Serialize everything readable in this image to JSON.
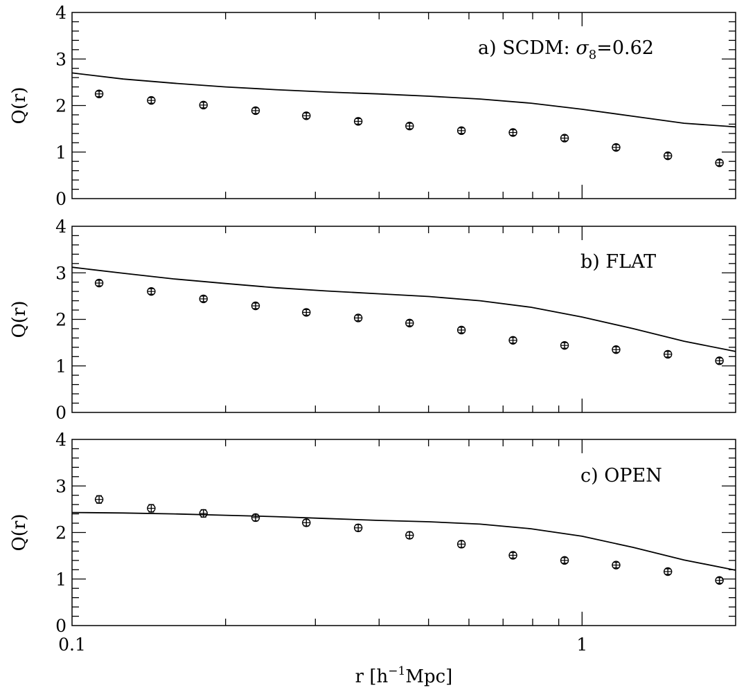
{
  "x_axis": {
    "label_main": "r ",
    "label_open": "[h",
    "label_sup": "−1",
    "label_close": "Mpc]"
  },
  "chart_data": [
    {
      "type": "scatter",
      "panel_label_prefix": "a) SCDM: ",
      "panel_label_sigma": "σ",
      "panel_label_sub": "8",
      "panel_label_suffix": "=0.62",
      "ylabel": "Q(r)",
      "xscale": "log",
      "xlim": [
        0.1,
        2.0
      ],
      "ylim": [
        0,
        4
      ],
      "yticks": [
        "0",
        "1",
        "2",
        "3",
        "4"
      ],
      "xtick_labels": [],
      "points": {
        "x": [
          0.113,
          0.143,
          0.181,
          0.229,
          0.288,
          0.364,
          0.459,
          0.58,
          0.732,
          0.924,
          1.166,
          1.473,
          1.859
        ],
        "y": [
          2.25,
          2.11,
          2.01,
          1.89,
          1.78,
          1.66,
          1.56,
          1.46,
          1.42,
          1.3,
          1.1,
          0.92,
          0.77
        ],
        "err": [
          0.06,
          0.06,
          0.06,
          0.06,
          0.06,
          0.06,
          0.06,
          0.06,
          0.06,
          0.06,
          0.06,
          0.06,
          0.06
        ]
      },
      "curve": {
        "x": [
          0.1,
          0.126,
          0.158,
          0.2,
          0.251,
          0.316,
          0.398,
          0.501,
          0.631,
          0.794,
          1.0,
          1.259,
          1.585,
          2.0
        ],
        "y": [
          2.7,
          2.57,
          2.48,
          2.4,
          2.34,
          2.29,
          2.25,
          2.2,
          2.14,
          2.05,
          1.92,
          1.77,
          1.62,
          1.54
        ]
      }
    },
    {
      "type": "scatter",
      "panel_label_prefix": "b) FLAT",
      "ylabel": "Q(r)",
      "xscale": "log",
      "xlim": [
        0.1,
        2.0
      ],
      "ylim": [
        0,
        4
      ],
      "yticks": [
        "0",
        "1",
        "2",
        "3",
        "4"
      ],
      "xtick_labels": [],
      "points": {
        "x": [
          0.113,
          0.143,
          0.181,
          0.229,
          0.288,
          0.364,
          0.459,
          0.58,
          0.732,
          0.924,
          1.166,
          1.473,
          1.859
        ],
        "y": [
          2.78,
          2.6,
          2.44,
          2.29,
          2.15,
          2.03,
          1.92,
          1.77,
          1.55,
          1.44,
          1.35,
          1.25,
          1.11
        ],
        "err": [
          0.06,
          0.06,
          0.06,
          0.06,
          0.06,
          0.06,
          0.06,
          0.06,
          0.06,
          0.06,
          0.06,
          0.06,
          0.06
        ]
      },
      "curve": {
        "x": [
          0.1,
          0.126,
          0.158,
          0.2,
          0.251,
          0.316,
          0.398,
          0.501,
          0.631,
          0.794,
          1.0,
          1.259,
          1.585,
          2.0
        ],
        "y": [
          3.12,
          2.99,
          2.87,
          2.77,
          2.68,
          2.61,
          2.55,
          2.49,
          2.4,
          2.26,
          2.05,
          1.8,
          1.53,
          1.31
        ]
      }
    },
    {
      "type": "scatter",
      "panel_label_prefix": "c) OPEN",
      "ylabel": "Q(r)",
      "xscale": "log",
      "xlim": [
        0.1,
        2.0
      ],
      "ylim": [
        0,
        4
      ],
      "yticks": [
        "0",
        "1",
        "2",
        "3",
        "4"
      ],
      "xtick_labels": [
        "0.1",
        "1"
      ],
      "points": {
        "x": [
          0.113,
          0.143,
          0.181,
          0.229,
          0.288,
          0.364,
          0.459,
          0.58,
          0.732,
          0.924,
          1.166,
          1.473,
          1.859
        ],
        "y": [
          2.71,
          2.52,
          2.41,
          2.32,
          2.21,
          2.1,
          1.94,
          1.75,
          1.51,
          1.4,
          1.3,
          1.16,
          0.97
        ],
        "err": [
          0.08,
          0.08,
          0.08,
          0.07,
          0.07,
          0.07,
          0.07,
          0.07,
          0.06,
          0.06,
          0.06,
          0.06,
          0.06
        ]
      },
      "curve": {
        "x": [
          0.1,
          0.126,
          0.158,
          0.2,
          0.251,
          0.316,
          0.398,
          0.501,
          0.631,
          0.794,
          1.0,
          1.259,
          1.585,
          2.0
        ],
        "y": [
          2.43,
          2.42,
          2.4,
          2.37,
          2.34,
          2.3,
          2.26,
          2.23,
          2.18,
          2.08,
          1.92,
          1.68,
          1.41,
          1.19
        ]
      }
    }
  ]
}
